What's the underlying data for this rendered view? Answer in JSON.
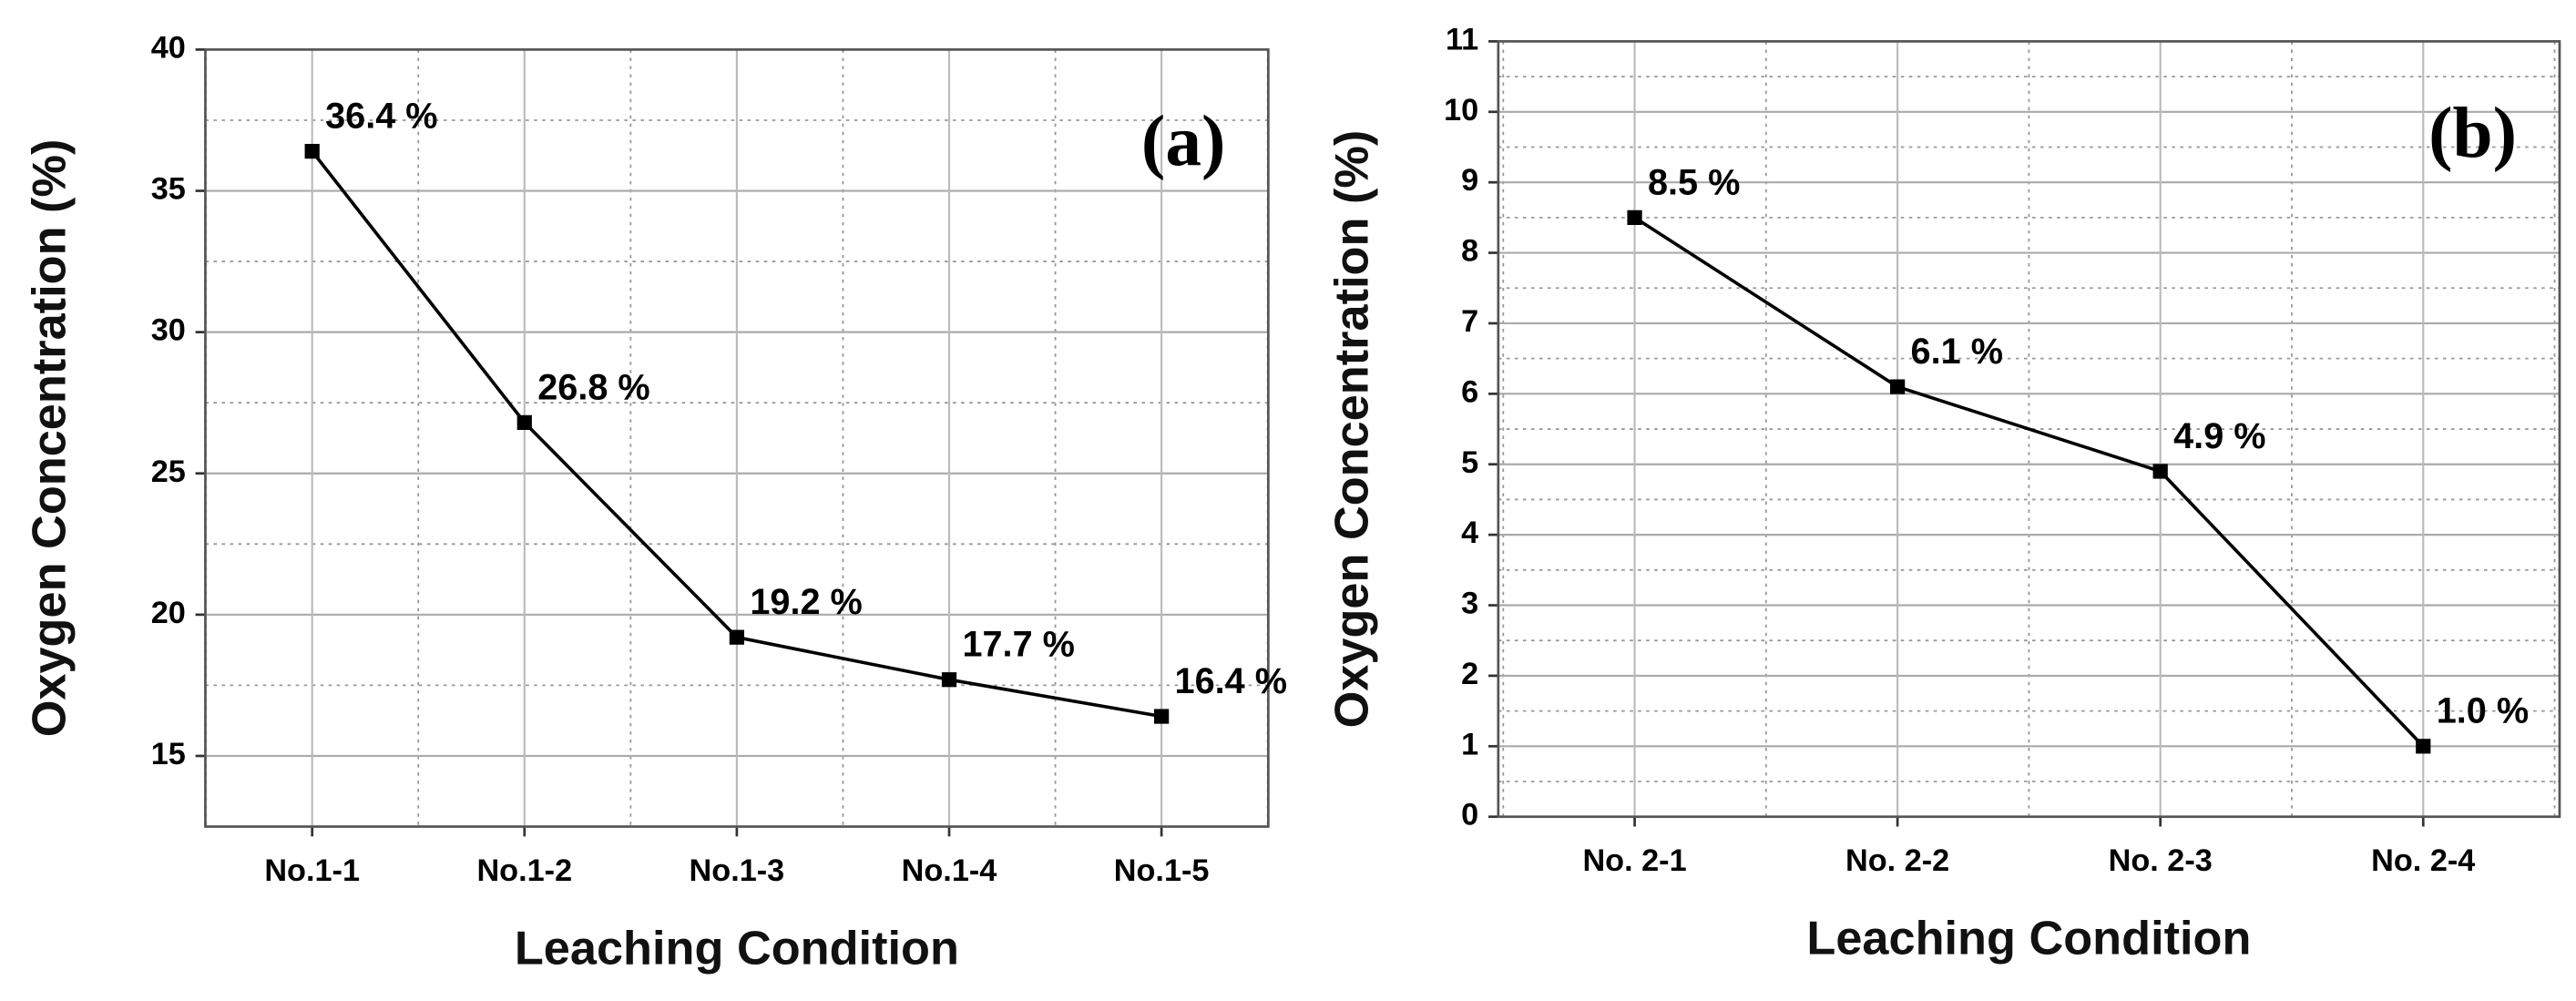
{
  "chart_data": [
    {
      "type": "line",
      "annotation": "(a)",
      "x_label": "Leaching Condition",
      "y_label": "Oxygen Concentration (%)",
      "categories": [
        "No.1-1",
        "No.1-2",
        "No.1-3",
        "No.1-4",
        "No.1-5"
      ],
      "values": [
        36.4,
        26.8,
        19.2,
        17.7,
        16.4
      ],
      "value_labels": [
        "36.4 %",
        "26.8 %",
        "19.2 %",
        "17.7 %",
        "16.4 %"
      ],
      "color": "#000000",
      "ylim": [
        12.5,
        40
      ],
      "yticks": [
        15,
        20,
        25,
        30,
        35,
        40
      ],
      "grid": true
    },
    {
      "type": "line",
      "annotation": "(b)",
      "x_label": "Leaching Condition",
      "y_label": "Oxygen Concentration (%)",
      "categories": [
        "No. 2-1",
        "No. 2-2",
        "No. 2-3",
        "No. 2-4"
      ],
      "values": [
        8.5,
        6.1,
        4.9,
        1.0
      ],
      "value_labels": [
        "8.5 %",
        "6.1 %",
        "4.9 %",
        "1.0 %"
      ],
      "color": "#000000",
      "ylim": [
        0,
        11
      ],
      "yticks": [
        0,
        1,
        2,
        3,
        4,
        5,
        6,
        7,
        8,
        9,
        10,
        11
      ],
      "grid": true
    }
  ]
}
